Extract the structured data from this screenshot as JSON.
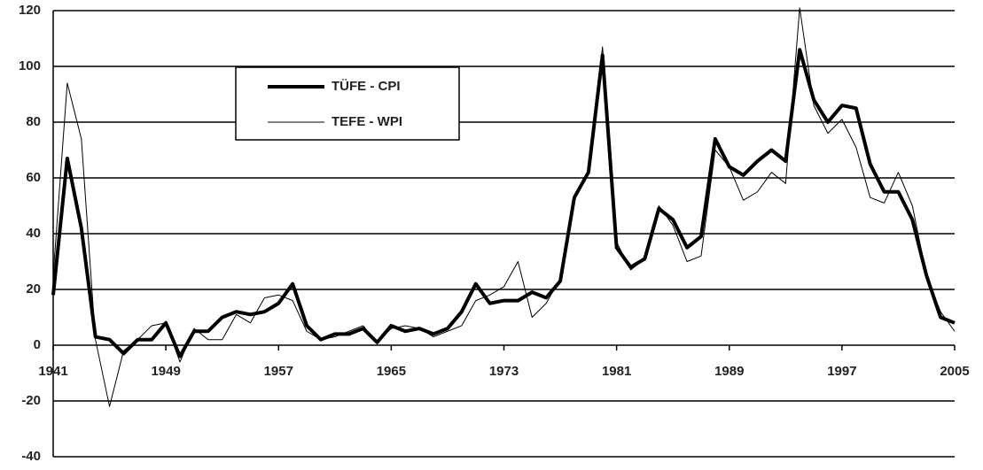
{
  "chart_data": {
    "type": "line",
    "x": [
      1941,
      1942,
      1943,
      1944,
      1945,
      1946,
      1947,
      1948,
      1949,
      1950,
      1951,
      1952,
      1953,
      1954,
      1955,
      1956,
      1957,
      1958,
      1959,
      1960,
      1961,
      1962,
      1963,
      1964,
      1965,
      1966,
      1967,
      1968,
      1969,
      1970,
      1971,
      1972,
      1973,
      1974,
      1975,
      1976,
      1977,
      1978,
      1979,
      1980,
      1981,
      1982,
      1983,
      1984,
      1985,
      1986,
      1987,
      1988,
      1989,
      1990,
      1991,
      1992,
      1993,
      1994,
      1995,
      1996,
      1997,
      1998,
      1999,
      2000,
      2001,
      2002,
      2003,
      2004,
      2005
    ],
    "series": [
      {
        "name": "TÜFE - CPI",
        "color": "#000000",
        "width": 4,
        "values": [
          18,
          67,
          42,
          3,
          2,
          -3,
          2,
          2,
          8,
          -4,
          5,
          5,
          10,
          12,
          11,
          12,
          15,
          22,
          7,
          2,
          4,
          4,
          6,
          1,
          7,
          5,
          6,
          4,
          6,
          12,
          22,
          15,
          16,
          16,
          19,
          17,
          23,
          53,
          62,
          104,
          35,
          28,
          31,
          49,
          45,
          35,
          39,
          74,
          64,
          61,
          66,
          70,
          66,
          106,
          88,
          80,
          86,
          85,
          65,
          55,
          55,
          45,
          25,
          10,
          8
        ]
      },
      {
        "name": "TEFE - WPI",
        "color": "#000000",
        "width": 1,
        "values": [
          25,
          94,
          74,
          2,
          -22,
          -2,
          2,
          7,
          8,
          -6,
          6,
          2,
          2,
          11,
          8,
          17,
          18,
          16,
          5,
          2,
          3,
          5,
          7,
          1,
          6,
          7,
          6,
          3,
          5,
          7,
          16,
          18,
          21,
          30,
          10,
          15,
          24,
          52,
          63,
          107,
          37,
          27,
          31,
          50,
          43,
          30,
          32,
          70,
          64,
          52,
          55,
          62,
          58,
          121,
          86,
          76,
          81,
          71,
          53,
          51,
          62,
          50,
          25,
          12,
          5
        ]
      }
    ],
    "xlim": [
      1941,
      2005
    ],
    "xticks": [
      1941,
      1949,
      1957,
      1965,
      1973,
      1981,
      1989,
      1997,
      2005
    ],
    "ylim": [
      -40,
      120
    ],
    "yticks": [
      -40,
      -20,
      0,
      20,
      40,
      60,
      80,
      100,
      120
    ],
    "grid": true,
    "legend": "upper left"
  }
}
